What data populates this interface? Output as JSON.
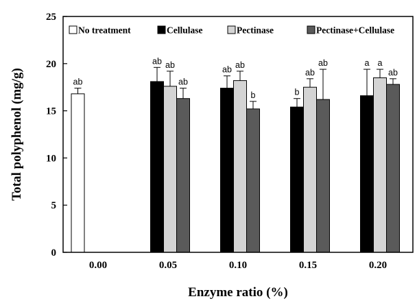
{
  "chart_data": {
    "type": "bar",
    "title": "",
    "xlabel": "Enzyme ratio (%)",
    "ylabel": "Total polyphenol (mg/g)",
    "ylim": [
      0,
      25
    ],
    "yticks": [
      "0",
      "5",
      "10",
      "15",
      "20",
      "25"
    ],
    "categories": [
      "0.00",
      "0.05",
      "0.10",
      "0.15",
      "0.20"
    ],
    "legend_position": "top",
    "grid": false,
    "series": [
      {
        "name": "No treatment",
        "color": "#ffffff",
        "values": [
          16.8,
          null,
          null,
          null,
          null
        ],
        "errors": [
          0.6,
          null,
          null,
          null,
          null
        ],
        "labels": [
          "ab",
          "",
          "",
          "",
          ""
        ]
      },
      {
        "name": "Cellulase",
        "color": "#000000",
        "values": [
          null,
          18.1,
          17.4,
          15.4,
          16.6
        ],
        "errors": [
          null,
          1.5,
          1.3,
          0.9,
          2.8
        ],
        "labels": [
          "",
          "ab",
          "ab",
          "b",
          "a"
        ]
      },
      {
        "name": "Pectinase",
        "color": "#d4d4d4",
        "values": [
          null,
          17.6,
          18.2,
          17.5,
          18.5
        ],
        "errors": [
          null,
          1.6,
          1.0,
          0.9,
          0.9
        ],
        "labels": [
          "",
          "ab",
          "ab",
          "ab",
          "a"
        ]
      },
      {
        "name": "Pectinase+Cellulase",
        "color": "#5a5a5a",
        "values": [
          null,
          16.3,
          15.2,
          16.2,
          17.8
        ],
        "errors": [
          null,
          1.1,
          0.8,
          3.2,
          0.6
        ],
        "labels": [
          "",
          "ab",
          "b",
          "ab",
          "ab"
        ]
      }
    ]
  }
}
